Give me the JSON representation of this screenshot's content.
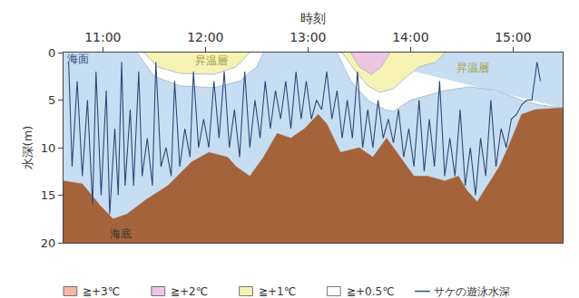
{
  "chart_data": {
    "type": "line",
    "xlabel": "時刻",
    "ylabel": "水深(m)",
    "xlim": [
      637,
      929
    ],
    "xticks": [
      {
        "value": 660,
        "label": "11:00"
      },
      {
        "value": 720,
        "label": "12:00"
      },
      {
        "value": 780,
        "label": "13:00"
      },
      {
        "value": 840,
        "label": "14:00"
      },
      {
        "value": 900,
        "label": "15:00"
      }
    ],
    "ylim": [
      20,
      0
    ],
    "yticks": [
      0,
      5,
      10,
      15,
      20
    ],
    "grid": false,
    "seafloor": {
      "color": "#a5633b",
      "x": [
        637,
        648,
        658,
        666,
        674,
        685,
        698,
        712,
        722,
        733,
        738,
        746,
        754,
        762,
        770,
        778,
        786,
        791,
        799,
        810,
        818,
        826,
        834,
        842,
        850,
        860,
        868,
        873,
        879,
        887,
        892,
        897,
        905,
        913,
        929
      ],
      "values": [
        13.5,
        13.8,
        16,
        17.5,
        17,
        15.5,
        14,
        11.5,
        10.5,
        11,
        12,
        13,
        11,
        8.5,
        9,
        8,
        6.5,
        7.5,
        10.5,
        10,
        11,
        9,
        11,
        13,
        13,
        13.5,
        13,
        14.5,
        15.7,
        13.5,
        12,
        10,
        6.5,
        6,
        5.8
      ]
    },
    "series": [
      {
        "name": "≧+3℃",
        "type": "area",
        "color": "#f4b6ab",
        "x": [],
        "values": []
      },
      {
        "name": "≧+2℃",
        "type": "area",
        "color": "#eec6e2",
        "x": [
          805,
          810,
          817,
          823,
          828
        ],
        "values": [
          0,
          1.5,
          2.3,
          1.5,
          0
        ]
      },
      {
        "name": "≧+1℃",
        "type": "area",
        "color": "#f5f2b4",
        "x": [
          684,
          692,
          705,
          725,
          738,
          746,
          null,
          800,
          808,
          815,
          822,
          830,
          838,
          845,
          855,
          860
        ],
        "values": [
          0,
          1.5,
          2.2,
          2.3,
          1.5,
          0,
          null,
          0,
          2,
          3.5,
          4.2,
          3.8,
          2.5,
          1.5,
          1,
          0
        ]
      },
      {
        "name": "≧+0.5℃",
        "type": "area",
        "color": "#ffffff",
        "x": [
          680,
          690,
          705,
          725,
          740,
          750,
          754,
          null,
          797,
          805,
          815,
          825,
          830,
          840,
          860,
          875,
          890,
          905,
          915,
          929
        ],
        "values": [
          0,
          2.5,
          3.5,
          3.7,
          3,
          1.5,
          0,
          null,
          0,
          3,
          5,
          6,
          6.2,
          5,
          4,
          3.6,
          4,
          5,
          5.5,
          5.8
        ]
      },
      {
        "name": "サケの遊泳水深",
        "type": "line",
        "color": "#2c4a7a",
        "x": [
          640,
          642,
          645,
          648,
          651,
          654,
          656,
          659,
          662,
          664,
          667,
          669,
          671,
          673,
          676,
          678,
          681,
          683,
          686,
          689,
          691,
          694,
          697,
          700,
          702,
          705,
          708,
          711,
          713,
          716,
          719,
          722,
          725,
          728,
          731,
          734,
          737,
          740,
          743,
          746,
          749,
          752,
          755,
          758,
          761,
          764,
          767,
          770,
          773,
          776,
          779,
          782,
          785,
          788,
          791,
          794,
          797,
          800,
          803,
          806,
          809,
          812,
          815,
          818,
          821,
          824,
          827,
          830,
          833,
          836,
          839,
          842,
          845,
          848,
          851,
          854,
          857,
          860,
          863,
          866,
          869,
          872,
          875,
          878,
          881,
          884,
          887,
          890,
          893,
          896,
          899,
          902,
          905,
          908,
          911,
          914,
          916
        ],
        "values": [
          1,
          12,
          3,
          13,
          5,
          16,
          2,
          15,
          4,
          17,
          8,
          15,
          1,
          14,
          6,
          14,
          2,
          13,
          9,
          14,
          1,
          12,
          10,
          13,
          3,
          12,
          8,
          11,
          2,
          10,
          7,
          10,
          3,
          9,
          2,
          10,
          6,
          11,
          2,
          10,
          5,
          9,
          3,
          8,
          4,
          7,
          3,
          8,
          2,
          7,
          3,
          7,
          5,
          6,
          2,
          7,
          4,
          9,
          5,
          9,
          2,
          10,
          6,
          10,
          5,
          9,
          7,
          9.5,
          6,
          11,
          8,
          12,
          5,
          12.5,
          7,
          12,
          3,
          13,
          9,
          13,
          6,
          14,
          10,
          15,
          9,
          13,
          5,
          12,
          8,
          10,
          7,
          6.5,
          5.5,
          5,
          5,
          1,
          3
        ]
      }
    ],
    "annotations": [
      {
        "text": "海面",
        "x": 638,
        "y": 0.7,
        "color": "#2c4a7a"
      },
      {
        "text": "海底",
        "x": 663,
        "y": 19,
        "color": "#333333"
      },
      {
        "text": "昇温層",
        "x": 713,
        "y": 0.9,
        "color": "#a0a040"
      },
      {
        "text": "昇温層",
        "x": 866,
        "y": 1.6,
        "color": "#a0a040"
      }
    ]
  }
}
